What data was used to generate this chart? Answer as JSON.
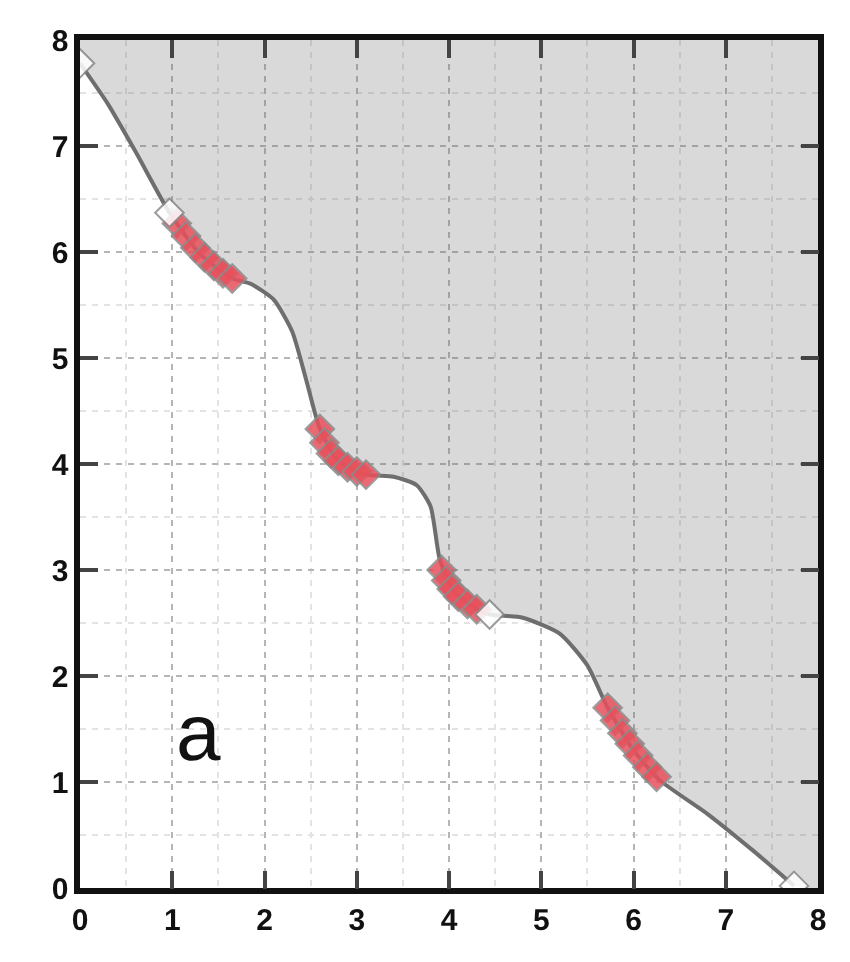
{
  "chart_data": {
    "type": "line",
    "xlim": [
      0,
      8
    ],
    "ylim": [
      0,
      8
    ],
    "xticks": [
      0,
      1,
      2,
      3,
      4,
      5,
      6,
      7,
      8
    ],
    "yticks": [
      0,
      1,
      2,
      3,
      4,
      5,
      6,
      7,
      8
    ],
    "grid": true,
    "annotations": [
      "a"
    ],
    "series": [
      {
        "color": "#6e6e6e",
        "marker": "none",
        "x": [
          0,
          0.3,
          0.6,
          0.97,
          1.3,
          1.65,
          1.85,
          2.1,
          2.3,
          2.45,
          2.6,
          2.8,
          3.1,
          3.4,
          3.65,
          3.8,
          3.9,
          4.05,
          4.3,
          4.44,
          4.8,
          5.2,
          5.5,
          5.72,
          6.0,
          6.28,
          6.8,
          7.3,
          7.74,
          8
        ],
        "values": [
          7.78,
          7.4,
          6.95,
          6.37,
          5.98,
          5.75,
          5.7,
          5.55,
          5.25,
          4.8,
          4.33,
          4.03,
          3.9,
          3.88,
          3.8,
          3.6,
          3.1,
          2.8,
          2.63,
          2.58,
          2.55,
          2.4,
          2.1,
          1.7,
          1.3,
          1.02,
          0.7,
          0.35,
          0.02,
          null
        ],
        "lower": [
          7.78,
          7.4,
          6.95,
          6.37,
          5.98,
          5.75,
          5.7,
          5.55,
          5.25,
          4.8,
          4.33,
          4.03,
          3.9,
          3.88,
          3.8,
          3.6,
          3.1,
          2.8,
          2.63,
          2.58,
          2.55,
          2.4,
          2.1,
          1.7,
          1.3,
          1.02,
          0.7,
          0.35,
          0.02,
          0
        ],
        "upper": [
          8,
          8,
          8,
          8,
          8,
          8,
          8,
          8,
          8,
          8,
          8,
          8,
          8,
          8,
          8,
          8,
          8,
          8,
          8,
          8,
          8,
          8,
          8,
          8,
          8,
          8,
          8,
          8,
          8,
          8
        ]
      },
      {
        "type": "scatter",
        "color": "#e8505b",
        "marker": "diamond",
        "x": [
          1.05,
          1.15,
          1.25,
          1.35,
          1.45,
          1.55,
          1.65,
          2.6,
          2.65,
          2.72,
          2.8,
          2.9,
          3.0,
          3.1,
          3.92,
          3.97,
          4.03,
          4.1,
          4.2,
          4.3,
          5.72,
          5.8,
          5.88,
          5.96,
          6.05,
          6.15,
          6.25
        ],
        "values": [
          6.27,
          6.15,
          6.04,
          5.95,
          5.87,
          5.8,
          5.75,
          4.33,
          4.2,
          4.1,
          4.03,
          3.97,
          3.93,
          3.9,
          3.0,
          2.9,
          2.82,
          2.75,
          2.68,
          2.63,
          1.7,
          1.58,
          1.46,
          1.36,
          1.25,
          1.14,
          1.05
        ]
      },
      {
        "type": "scatter",
        "color": "#ffffff",
        "marker": "diamond",
        "x": [
          0,
          0.97,
          4.44,
          7.74
        ],
        "values": [
          7.78,
          6.37,
          2.58,
          0.02
        ]
      }
    ]
  }
}
